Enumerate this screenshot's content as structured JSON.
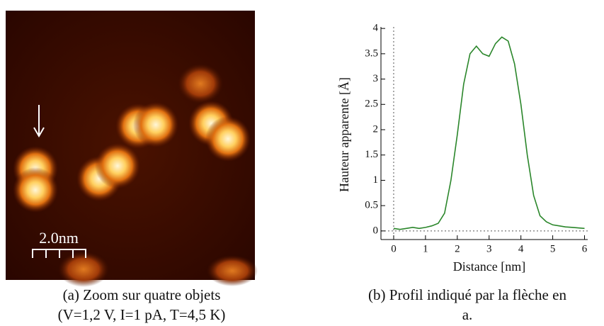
{
  "image": {
    "scale_label": "2.0nm"
  },
  "captions": {
    "a": [
      "(a) Zoom sur quatre objets",
      "(V=1,2 V, I=1 pA, T=4,5 K)"
    ],
    "b": [
      "(b) Profil indiqué par la flèche en",
      "a."
    ]
  },
  "chart_data": {
    "type": "line",
    "x_label": "Distance [nm]",
    "y_label": "Hauteur apparente [Å]",
    "x": [
      0,
      0.2,
      0.4,
      0.6,
      0.8,
      1.0,
      1.2,
      1.4,
      1.6,
      1.8,
      2.0,
      2.2,
      2.4,
      2.6,
      2.8,
      3.0,
      3.2,
      3.4,
      3.6,
      3.8,
      4.0,
      4.2,
      4.4,
      4.6,
      4.8,
      5.0,
      5.2,
      5.4,
      5.6,
      5.8,
      6.0
    ],
    "series": [
      {
        "color": "#2a862a",
        "values": [
          0.05,
          0.03,
          0.05,
          0.07,
          0.05,
          0.07,
          0.1,
          0.15,
          0.35,
          1.0,
          1.9,
          2.9,
          3.5,
          3.65,
          3.5,
          3.45,
          3.7,
          3.83,
          3.75,
          3.3,
          2.5,
          1.5,
          0.7,
          0.3,
          0.18,
          0.12,
          0.1,
          0.08,
          0.07,
          0.06,
          0.05
        ]
      }
    ],
    "xlim": [
      -0.4,
      6.1
    ],
    "ylim": [
      -0.17,
      4.03
    ],
    "xticks": [
      0,
      1,
      2,
      3,
      4,
      5,
      6
    ],
    "yticks": [
      0,
      0.5,
      1,
      1.5,
      2,
      2.5,
      3,
      3.5,
      4
    ]
  }
}
